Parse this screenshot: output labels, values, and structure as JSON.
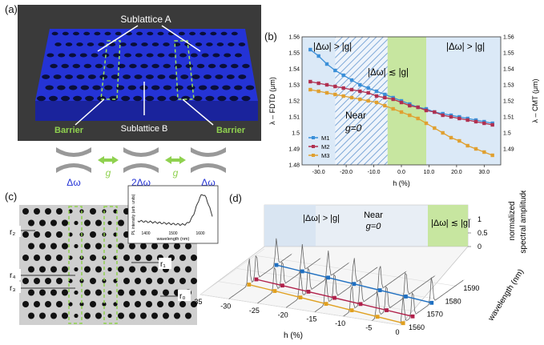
{
  "panel_labels": {
    "a": "(a)",
    "b": "(b)",
    "c": "(c)",
    "d": "(d)"
  },
  "panel_a": {
    "sublattice_a": "Sublattice A",
    "sublattice_b": "Sublattice B",
    "barrier_left": "Barrier",
    "barrier_right": "Barrier",
    "delta_left": "Δω",
    "delta_center": "2Δω",
    "delta_right": "Δω",
    "coupling_left": "g",
    "coupling_right": "g",
    "colors": {
      "slab": "#1f2fcf",
      "barrier": "#8fd14f",
      "bg": "#3a3a3a"
    }
  },
  "panel_b": {
    "chart_data": {
      "type": "line",
      "xlabel": "h (%)",
      "ylabel_left": "λ – FDTD (μm)",
      "ylabel_right": "λ – CMT (μm)",
      "xlim": [
        -36,
        36
      ],
      "ylim": [
        1.48,
        1.56
      ],
      "xticks": [
        "-30.0",
        "-20.0",
        "-10.0",
        "0.0",
        "10.0",
        "20.0",
        "30.0"
      ],
      "yticks_left": [
        "1.48",
        "1.49",
        "1.5",
        "1.51",
        "1.52",
        "1.53",
        "1.54",
        "1.55",
        "1.56"
      ],
      "yticks_right": [
        "1.49",
        "1.5",
        "1.51",
        "1.52",
        "1.53",
        "1.54",
        "1.55",
        "1.56"
      ],
      "region_left": "|Δω| > |g|",
      "region_center": "|Δω| ≲ |g|",
      "region_right": "|Δω| > |g|",
      "near_label": "Near",
      "g0_label": "g=0",
      "legend": [
        "M1",
        "M2",
        "M3"
      ],
      "series": [
        {
          "name": "M1",
          "color": "#3a8fd8",
          "x": [
            -33,
            -30,
            -27,
            -24,
            -21,
            -18,
            -15,
            -12,
            -9,
            -6,
            -3,
            0,
            3,
            6,
            9,
            12,
            15,
            18,
            21,
            24,
            27,
            30,
            33
          ],
          "y": [
            1.552,
            1.548,
            1.543,
            1.539,
            1.536,
            1.533,
            1.53,
            1.528,
            1.526,
            1.524,
            1.522,
            1.52,
            1.518,
            1.516,
            1.515,
            1.513,
            1.512,
            1.511,
            1.51,
            1.509,
            1.508,
            1.507,
            1.506
          ]
        },
        {
          "name": "M2",
          "color": "#b03050",
          "x": [
            -33,
            -30,
            -27,
            -24,
            -21,
            -18,
            -15,
            -12,
            -9,
            -6,
            -3,
            0,
            3,
            6,
            9,
            12,
            15,
            18,
            21,
            24,
            27,
            30,
            33
          ],
          "y": [
            1.532,
            1.531,
            1.53,
            1.529,
            1.528,
            1.527,
            1.526,
            1.525,
            1.523,
            1.522,
            1.521,
            1.519,
            1.517,
            1.516,
            1.514,
            1.513,
            1.511,
            1.51,
            1.509,
            1.508,
            1.507,
            1.506,
            1.505
          ]
        },
        {
          "name": "M3",
          "color": "#e0a030",
          "x": [
            -33,
            -30,
            -27,
            -24,
            -21,
            -18,
            -15,
            -12,
            -9,
            -6,
            -3,
            0,
            3,
            6,
            9,
            12,
            15,
            18,
            21,
            24,
            27,
            30,
            33
          ],
          "y": [
            1.527,
            1.526,
            1.525,
            1.524,
            1.523,
            1.522,
            1.521,
            1.52,
            1.519,
            1.517,
            1.515,
            1.513,
            1.511,
            1.509,
            1.506,
            1.503,
            1.5,
            1.497,
            1.495,
            1.492,
            1.49,
            1.488,
            1.486
          ]
        }
      ]
    }
  },
  "panel_c": {
    "inset_ylabel": "PL intensity (arb. units)",
    "inset_xlabel": "wavelength (nm)",
    "inset_xticks": [
      "1400",
      "1500",
      "1600"
    ],
    "labels": {
      "r2": "r₂",
      "r1": "r₁",
      "r4": "r₄",
      "r3": "r₃",
      "r0": "r₀"
    }
  },
  "panel_d": {
    "chart_data": {
      "type": "line",
      "xlabel": "h (%)",
      "ylabel": "wavelength (nm)",
      "zlabel_1": "normalized",
      "zlabel_2": "spectral amplitude",
      "xticks": [
        "-35",
        "-30",
        "-25",
        "-20",
        "-15",
        "-10",
        "-5",
        "0"
      ],
      "yticks": [
        "1560",
        "1570",
        "1580",
        "1590"
      ],
      "zticks": [
        "0",
        "0.5",
        "1"
      ],
      "region_left": "|Δω| > |g|",
      "region_center_1": "Near",
      "region_center_2": "g=0",
      "region_right": "|Δω| ≲ |g|",
      "series": [
        {
          "name": "M1",
          "color": "#1f6fc0",
          "h": [
            -30,
            -25,
            -20,
            -15,
            -10,
            -5,
            0
          ]
        },
        {
          "name": "M2",
          "color": "#b0204a",
          "h": [
            -30,
            -25,
            -20,
            -15,
            -10,
            -5,
            0
          ]
        },
        {
          "name": "M3",
          "color": "#e0a020",
          "h": [
            -30,
            -25,
            -20,
            -15,
            -10,
            -5,
            0
          ]
        }
      ]
    }
  }
}
